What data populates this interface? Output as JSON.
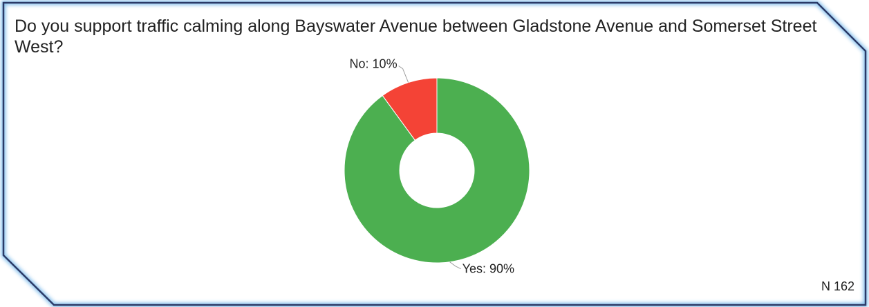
{
  "colors": {
    "frame_border": "#2b3a67",
    "frame_glow": "#5aa9e6",
    "yes": "#4caf50",
    "no": "#f44336",
    "leader": "#9e9e9e"
  },
  "chart_data": {
    "type": "pie",
    "donut": true,
    "title": "Do you support traffic calming along Bayswater Avenue between Gladstone Avenue and Somerset Street West?",
    "slices": [
      {
        "label": "No",
        "value": 10,
        "display": "No: 10%",
        "color": "#f44336"
      },
      {
        "label": "Yes",
        "value": 90,
        "display": "Yes: 90%",
        "color": "#4caf50"
      }
    ],
    "start": "12 o'clock",
    "direction": "counter-clockwise for No, clockwise for Yes",
    "legend": "none (direct labels)",
    "sample_size": "N 162"
  }
}
